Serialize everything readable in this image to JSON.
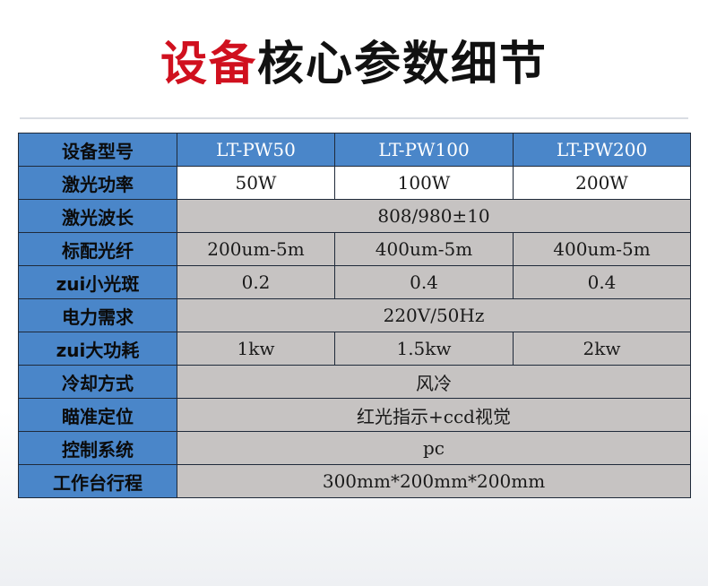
{
  "title": {
    "red": "设备",
    "black": "核心参数细节"
  },
  "colors": {
    "title_red": "#d0101e",
    "header_blue": "#4a86c9",
    "cell_grey": "#c6c3c2",
    "border": "#1f2a3a"
  },
  "table": {
    "header": {
      "label": "设备型号",
      "models": [
        "LT-PW50",
        "LT-PW100",
        "LT-PW200"
      ]
    },
    "rows": [
      {
        "label": "激光功率",
        "values": [
          "50W",
          "100W",
          "200W"
        ]
      },
      {
        "label": "激光波长",
        "value": "808/980±10"
      },
      {
        "label": "标配光纤",
        "values": [
          "200um-5m",
          "400um-5m",
          "400um-5m"
        ]
      },
      {
        "label": "zui小光斑",
        "values": [
          "0.2",
          "0.4",
          "0.4"
        ]
      },
      {
        "label": "电力需求",
        "value": "220V/50Hz"
      },
      {
        "label": "zui大功耗",
        "values": [
          "1kw",
          "1.5kw",
          "2kw"
        ]
      },
      {
        "label": "冷却方式",
        "value": "风冷"
      },
      {
        "label": "瞄准定位",
        "value": "红光指示+ccd视觉"
      },
      {
        "label": "控制系统",
        "value": "pc"
      },
      {
        "label": "工作台行程",
        "value": "300mm*200mm*200mm"
      }
    ]
  }
}
